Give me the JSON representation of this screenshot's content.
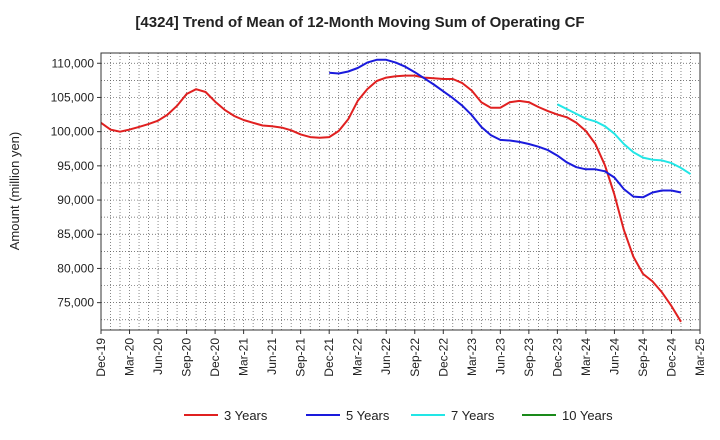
{
  "chart_data": {
    "type": "line",
    "title": "[4324]  Trend of Mean of 12-Month Moving Sum of Operating CF",
    "xlabel": "",
    "ylabel": "Amount (million yen)",
    "ylim": [
      71000,
      111500
    ],
    "y_ticks": [
      75000,
      80000,
      85000,
      90000,
      95000,
      100000,
      105000,
      110000
    ],
    "y_tick_labels": [
      "75,000",
      "80,000",
      "85,000",
      "90,000",
      "95,000",
      "100,000",
      "105,000",
      "110,000"
    ],
    "x_tick_labels": [
      "Dec-19",
      "Mar-20",
      "Jun-20",
      "Sep-20",
      "Dec-20",
      "Mar-21",
      "Jun-21",
      "Sep-21",
      "Dec-21",
      "Mar-22",
      "Jun-22",
      "Sep-22",
      "Dec-22",
      "Mar-23",
      "Jun-23",
      "Sep-23",
      "Dec-23",
      "Mar-24",
      "Jun-24",
      "Sep-24",
      "Dec-24",
      "Mar-25"
    ],
    "x_start": "Dec-19",
    "months_total": 63,
    "grid": true,
    "legend_position": "bottom",
    "series": [
      {
        "name": "3 Years",
        "color": "#e02020",
        "start_index": 0,
        "values": [
          101300,
          100300,
          100000,
          100300,
          100700,
          101100,
          101600,
          102500,
          103800,
          105500,
          106200,
          105800,
          104400,
          103200,
          102300,
          101700,
          101300,
          100900,
          100800,
          100600,
          100200,
          99600,
          99200,
          99100,
          99200,
          100100,
          101800,
          104500,
          106200,
          107400,
          107900,
          108100,
          108200,
          108200,
          107900,
          107800,
          107700,
          107700,
          107100,
          106000,
          104300,
          103500,
          103500,
          104300,
          104500,
          104300,
          103600,
          103000,
          102500,
          102100,
          101300,
          100100,
          98200,
          95100,
          90800,
          85600,
          81700,
          79200,
          78100,
          76500,
          74500,
          72200
        ]
      },
      {
        "name": "5 Years",
        "color": "#1a1adc",
        "start_index": 24,
        "values": [
          108600,
          108500,
          108800,
          109300,
          110100,
          110500,
          110500,
          110100,
          109500,
          108700,
          107800,
          106900,
          105900,
          104900,
          103800,
          102400,
          100700,
          99500,
          98800,
          98700,
          98500,
          98200,
          97800,
          97300,
          96500,
          95500,
          94800,
          94500,
          94500,
          94200,
          93300,
          91600,
          90500,
          90400,
          91100,
          91400,
          91400,
          91100
        ]
      },
      {
        "name": "7 Years",
        "color": "#22e6e6",
        "start_index": 48,
        "values": [
          104000,
          103300,
          102600,
          101900,
          101500,
          100800,
          99700,
          98200,
          97000,
          96200,
          95900,
          95800,
          95400,
          94700,
          93800
        ]
      },
      {
        "name": "10 Years",
        "color": "#1a8a1a",
        "start_index": 0,
        "values": []
      }
    ]
  }
}
